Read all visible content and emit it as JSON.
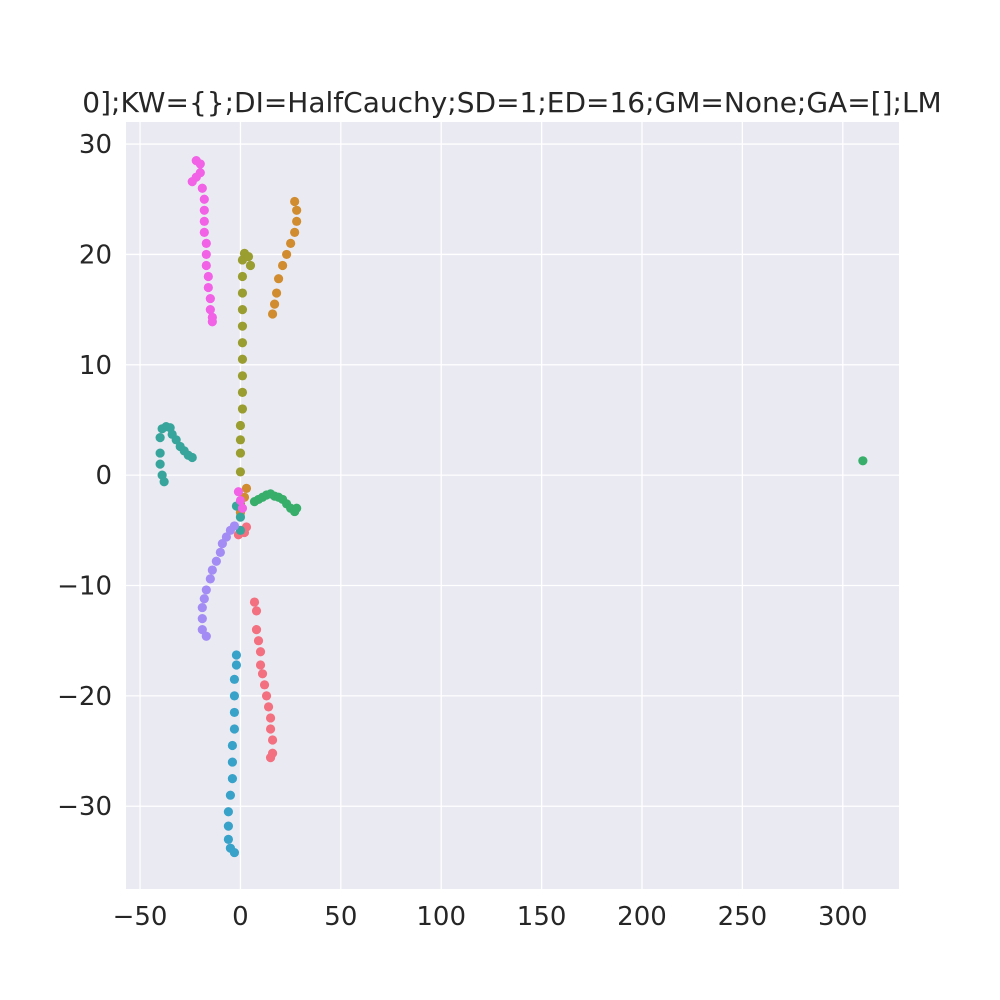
{
  "chart_data": {
    "type": "scatter",
    "title": "0];KW={};DI=HalfCauchy;SD=1;ED=16;GM=None;GA=[];LM",
    "xlabel": "",
    "ylabel": "",
    "xlim": [
      -57,
      328
    ],
    "ylim": [
      -37.5,
      32
    ],
    "xticks": [
      -50,
      0,
      50,
      100,
      150,
      200,
      250,
      300
    ],
    "xtick_labels": [
      "−50",
      "0",
      "50",
      "100",
      "150",
      "200",
      "250",
      "300"
    ],
    "yticks": [
      -30,
      -20,
      -10,
      0,
      10,
      20,
      30
    ],
    "ytick_labels": [
      "−30",
      "−20",
      "−10",
      "0",
      "10",
      "20",
      "30"
    ],
    "grid": true,
    "background": "#eaeaf2",
    "series": [
      {
        "color": "#f2707f",
        "points": [
          [
            -1,
            -5.4
          ],
          [
            2,
            -5.2
          ],
          [
            3,
            -4.7
          ],
          [
            7,
            -11.5
          ],
          [
            8,
            -12.3
          ],
          [
            8,
            -14
          ],
          [
            9,
            -15
          ],
          [
            10,
            -16
          ],
          [
            10,
            -17.2
          ],
          [
            11,
            -18
          ],
          [
            12,
            -19
          ],
          [
            13,
            -20
          ],
          [
            14,
            -21
          ],
          [
            15,
            -22
          ],
          [
            15,
            -23
          ],
          [
            16,
            -24
          ],
          [
            16,
            -25.2
          ],
          [
            15,
            -25.6
          ]
        ]
      },
      {
        "color": "#d08c2e",
        "points": [
          [
            0,
            -3.4
          ],
          [
            2,
            -2
          ],
          [
            3,
            -1.2
          ],
          [
            16,
            14.6
          ],
          [
            17,
            15.5
          ],
          [
            18,
            16.5
          ],
          [
            19,
            17.8
          ],
          [
            21,
            19
          ],
          [
            23,
            20
          ],
          [
            25,
            21
          ],
          [
            27,
            22
          ],
          [
            28,
            23
          ],
          [
            28,
            24
          ],
          [
            27,
            24.8
          ]
        ]
      },
      {
        "color": "#9a9d2f",
        "points": [
          [
            0,
            -2.6
          ],
          [
            0,
            0.3
          ],
          [
            0,
            2
          ],
          [
            0,
            3.2
          ],
          [
            0,
            4.5
          ],
          [
            1,
            6
          ],
          [
            1,
            7.5
          ],
          [
            1,
            9
          ],
          [
            1,
            10.5
          ],
          [
            1,
            12
          ],
          [
            1,
            13.5
          ],
          [
            1,
            15
          ],
          [
            1,
            16.5
          ],
          [
            1,
            18
          ],
          [
            1,
            19.5
          ],
          [
            2,
            20.1
          ],
          [
            4,
            19.8
          ],
          [
            5,
            19
          ]
        ]
      },
      {
        "color": "#37ae6a",
        "points": [
          [
            7,
            -2.4
          ],
          [
            9,
            -2.2
          ],
          [
            11,
            -2
          ],
          [
            13,
            -1.8
          ],
          [
            15,
            -1.7
          ],
          [
            17,
            -1.9
          ],
          [
            19,
            -2
          ],
          [
            21,
            -2.2
          ],
          [
            23,
            -2.6
          ],
          [
            25,
            -3
          ],
          [
            27,
            -3.3
          ],
          [
            28,
            -3
          ],
          [
            310,
            1.3
          ]
        ]
      },
      {
        "color": "#38a59c",
        "points": [
          [
            -40,
            2
          ],
          [
            -40,
            1
          ],
          [
            -39,
            0
          ],
          [
            -38,
            -0.6
          ],
          [
            -40,
            3.4
          ],
          [
            -39,
            4.2
          ],
          [
            -37,
            4.4
          ],
          [
            -35,
            4.3
          ],
          [
            -34,
            3.7
          ],
          [
            -32,
            3.2
          ],
          [
            -30,
            2.6
          ],
          [
            -28,
            2.2
          ],
          [
            -26,
            1.8
          ],
          [
            -24,
            1.6
          ],
          [
            -2,
            -2.8
          ],
          [
            0,
            -3.8
          ],
          [
            0,
            -5
          ]
        ]
      },
      {
        "color": "#38a2c9",
        "points": [
          [
            -2,
            -16.3
          ],
          [
            -2,
            -17.2
          ],
          [
            -3,
            -18.5
          ],
          [
            -3,
            -20
          ],
          [
            -3,
            -21.5
          ],
          [
            -3,
            -23
          ],
          [
            -4,
            -24.5
          ],
          [
            -4,
            -26
          ],
          [
            -4,
            -27.5
          ],
          [
            -5,
            -29
          ],
          [
            -6,
            -30.5
          ],
          [
            -6,
            -31.8
          ],
          [
            -6,
            -33
          ],
          [
            -5,
            -33.8
          ],
          [
            -3,
            -34.2
          ]
        ]
      },
      {
        "color": "#a38cf4",
        "points": [
          [
            -3,
            -4.6
          ],
          [
            -5,
            -5
          ],
          [
            -7,
            -5.6
          ],
          [
            -9,
            -6.2
          ],
          [
            -10,
            -7
          ],
          [
            -12,
            -7.8
          ],
          [
            -14,
            -8.6
          ],
          [
            -15,
            -9.4
          ],
          [
            -17,
            -10.4
          ],
          [
            -18,
            -11.2
          ],
          [
            -19,
            -12
          ],
          [
            -19,
            -13
          ],
          [
            -19,
            -14
          ],
          [
            -17,
            -14.6
          ]
        ]
      },
      {
        "color": "#f162e6",
        "points": [
          [
            -1,
            -1.5
          ],
          [
            0,
            -2.3
          ],
          [
            1,
            -3
          ],
          [
            -22,
            28.5
          ],
          [
            -20,
            28.2
          ],
          [
            -20,
            27.4
          ],
          [
            -22,
            27
          ],
          [
            -24,
            26.6
          ],
          [
            -19,
            26
          ],
          [
            -18,
            25
          ],
          [
            -18,
            24
          ],
          [
            -18,
            23
          ],
          [
            -18,
            22
          ],
          [
            -17,
            21
          ],
          [
            -17,
            20
          ],
          [
            -17,
            19
          ],
          [
            -16,
            18
          ],
          [
            -16,
            17
          ],
          [
            -15,
            16
          ],
          [
            -15,
            15
          ],
          [
            -14,
            14.3
          ],
          [
            -14,
            13.9
          ]
        ]
      }
    ]
  }
}
